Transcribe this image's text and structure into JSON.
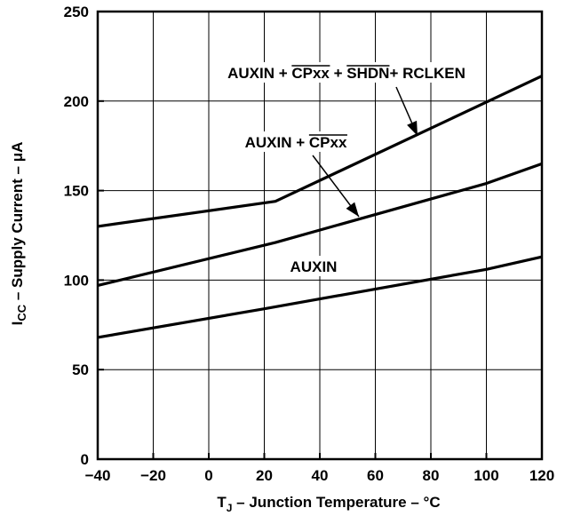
{
  "chart_data": {
    "type": "line",
    "title": "",
    "xlabel": "T J – Junction Temperature – °C",
    "xlabel_parts": {
      "base": "T",
      "sub": "J",
      "rest": " – Junction Temperature – °C"
    },
    "ylabel_parts": {
      "base": "I",
      "sub": "CC",
      "rest": " – Supply Current – μA"
    },
    "xlim": [
      -40,
      120
    ],
    "ylim": [
      0,
      250
    ],
    "x_ticks": [
      -40,
      -20,
      0,
      20,
      40,
      60,
      80,
      100,
      120
    ],
    "x_tick_labels": [
      "−40",
      "−20",
      "0",
      "20",
      "40",
      "60",
      "80",
      "100",
      "120"
    ],
    "y_ticks": [
      0,
      50,
      100,
      150,
      200,
      250
    ],
    "y_tick_labels": [
      "0",
      "50",
      "100",
      "150",
      "200",
      "250"
    ],
    "grid": true,
    "series": [
      {
        "name": "AUXIN + CPxx + SHDN+ RCLKEN",
        "label_parts": [
          {
            "text": "AUXIN + ",
            "overline": false
          },
          {
            "text": "CPxx",
            "overline": true
          },
          {
            "text": " + ",
            "overline": false
          },
          {
            "text": "SHDN",
            "overline": true
          },
          {
            "text": "+ RCLKEN",
            "overline": false
          }
        ],
        "x": [
          -40,
          24,
          120
        ],
        "y": [
          130,
          144,
          214
        ]
      },
      {
        "name": "AUXIN + CPxx",
        "label_parts": [
          {
            "text": "AUXIN + ",
            "overline": false
          },
          {
            "text": "CPxx",
            "overline": true
          }
        ],
        "x": [
          -40,
          24,
          100,
          120
        ],
        "y": [
          97,
          121,
          154,
          165
        ]
      },
      {
        "name": "AUXIN",
        "label_parts": [
          {
            "text": "AUXIN",
            "overline": false
          }
        ],
        "x": [
          -40,
          20,
          100,
          120
        ],
        "y": [
          68,
          84,
          106,
          113
        ]
      }
    ]
  }
}
